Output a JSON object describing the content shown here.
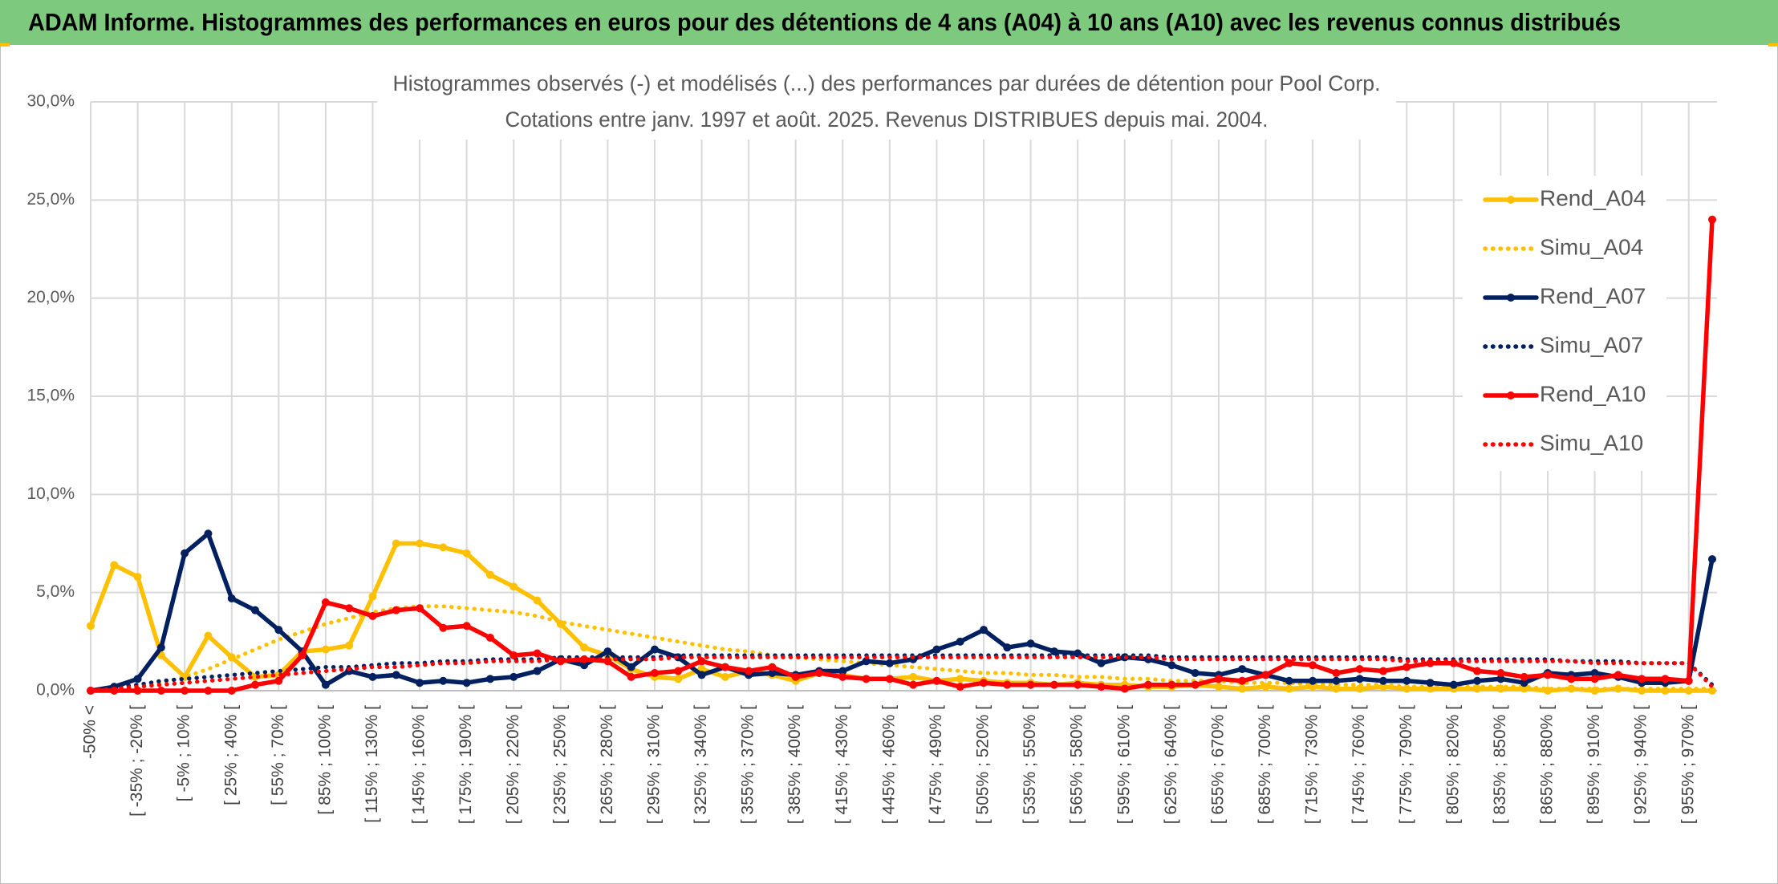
{
  "header": {
    "title": "ADAM Informe. Histogrammes des performances en euros pour des détentions de 4 ans (A04) à 10 ans (A10) avec les revenus connus distribués"
  },
  "chart_data": {
    "type": "line",
    "title": "Histogrammes observés (-) et modélisés (...) des performances par durées de détention pour Pool Corp.",
    "subtitle": "Cotations entre janv. 1997 et août. 2025. Revenus DISTRIBUES depuis mai. 2004.",
    "categories": [
      "-50% <",
      null,
      "[ -35% ; -20% [",
      null,
      "[ -5% ; 10% [",
      null,
      "[ 25% ; 40% [",
      null,
      "[ 55% ; 70% [",
      null,
      "[ 85% ; 100% [",
      null,
      "[ 115% ; 130% [",
      null,
      "[ 145% ; 160% [",
      null,
      "[ 175% ; 190% [",
      null,
      "[ 205% ; 220% [",
      null,
      "[ 235% ; 250% [",
      null,
      "[ 265% ; 280% [",
      null,
      "[ 295% ; 310% [",
      null,
      "[ 325% ; 340% [",
      null,
      "[ 355% ; 370% [",
      null,
      "[ 385% ; 400% [",
      null,
      "[ 415% ; 430% [",
      null,
      "[ 445% ; 460% [",
      null,
      "[ 475% ; 490% [",
      null,
      "[ 505% ; 520% [",
      null,
      "[ 535% ; 550% [",
      null,
      "[ 565% ; 580% [",
      null,
      "[ 595% ; 610% [",
      null,
      "[ 625% ; 640% [",
      null,
      "[ 655% ; 670% [",
      null,
      "[ 685% ; 700% [",
      null,
      "[ 715% ; 730% [",
      null,
      "[ 745% ; 760% [",
      null,
      "[ 775% ; 790% [",
      null,
      "[ 805% ; 820% [",
      null,
      "[ 835% ; 850% [",
      null,
      "[ 865% ; 880% [",
      null,
      "[ 895% ; 910% [",
      null,
      "[ 925% ; 940% [",
      null,
      "[ 955% ; 970% [",
      null
    ],
    "series": [
      {
        "name": "Rend_A04",
        "color": "#FFC000",
        "style": "solid",
        "markers": true,
        "values": [
          3.3,
          6.4,
          5.8,
          1.8,
          0.7,
          2.8,
          1.7,
          0.7,
          0.8,
          2.0,
          2.1,
          2.3,
          4.8,
          7.5,
          7.5,
          7.3,
          7.0,
          5.9,
          5.3,
          4.6,
          3.4,
          2.2,
          1.8,
          1.1,
          0.7,
          0.6,
          1.1,
          0.7,
          1.0,
          0.8,
          0.5,
          0.9,
          0.8,
          0.6,
          0.6,
          0.7,
          0.5,
          0.6,
          0.5,
          0.4,
          0.4,
          0.3,
          0.4,
          0.3,
          0.3,
          0.2,
          0.2,
          0.3,
          0.2,
          0.1,
          0.2,
          0.1,
          0.2,
          0.1,
          0.1,
          0.2,
          0.1,
          0.1,
          0.1,
          0.1,
          0.1,
          0.1,
          0.0,
          0.1,
          0.0,
          0.1,
          0.0,
          0.0,
          0.0,
          0.0
        ]
      },
      {
        "name": "Simu_A04",
        "color": "#FFC000",
        "style": "dotted",
        "markers": false,
        "values": [
          0.0,
          0.1,
          0.2,
          0.4,
          0.7,
          1.1,
          1.6,
          2.1,
          2.6,
          3.0,
          3.4,
          3.7,
          4.0,
          4.2,
          4.3,
          4.3,
          4.2,
          4.1,
          4.0,
          3.8,
          3.5,
          3.3,
          3.1,
          2.9,
          2.7,
          2.5,
          2.3,
          2.1,
          2.0,
          1.8,
          1.7,
          1.6,
          1.5,
          1.4,
          1.3,
          1.2,
          1.1,
          1.0,
          0.9,
          0.9,
          0.8,
          0.8,
          0.7,
          0.7,
          0.6,
          0.6,
          0.5,
          0.5,
          0.5,
          0.4,
          0.4,
          0.4,
          0.3,
          0.3,
          0.3,
          0.3,
          0.2,
          0.2,
          0.2,
          0.2,
          0.2,
          0.2,
          0.1,
          0.1,
          0.1,
          0.1,
          0.1,
          0.1,
          0.1,
          0.1
        ]
      },
      {
        "name": "Rend_A07",
        "color": "#002060",
        "style": "solid",
        "markers": true,
        "values": [
          0.0,
          0.2,
          0.6,
          2.2,
          7.0,
          8.0,
          4.7,
          4.1,
          3.1,
          2.0,
          0.3,
          1.0,
          0.7,
          0.8,
          0.4,
          0.5,
          0.4,
          0.6,
          0.7,
          1.0,
          1.6,
          1.3,
          2.0,
          1.2,
          2.1,
          1.7,
          0.8,
          1.2,
          0.8,
          0.9,
          0.8,
          1.0,
          1.0,
          1.5,
          1.4,
          1.6,
          2.1,
          2.5,
          3.1,
          2.2,
          2.4,
          2.0,
          1.9,
          1.4,
          1.7,
          1.6,
          1.3,
          0.9,
          0.8,
          1.1,
          0.8,
          0.5,
          0.5,
          0.5,
          0.6,
          0.5,
          0.5,
          0.4,
          0.3,
          0.5,
          0.6,
          0.4,
          0.9,
          0.8,
          0.9,
          0.7,
          0.4,
          0.4,
          0.5,
          6.7
        ]
      },
      {
        "name": "Simu_A07",
        "color": "#002060",
        "style": "dotted",
        "markers": false,
        "values": [
          0.0,
          0.2,
          0.3,
          0.5,
          0.6,
          0.7,
          0.8,
          0.9,
          1.0,
          1.1,
          1.2,
          1.2,
          1.3,
          1.4,
          1.4,
          1.5,
          1.5,
          1.6,
          1.6,
          1.6,
          1.7,
          1.7,
          1.7,
          1.7,
          1.7,
          1.8,
          1.8,
          1.8,
          1.8,
          1.8,
          1.8,
          1.8,
          1.8,
          1.8,
          1.8,
          1.8,
          1.8,
          1.8,
          1.8,
          1.8,
          1.8,
          1.8,
          1.8,
          1.8,
          1.8,
          1.8,
          1.7,
          1.7,
          1.7,
          1.7,
          1.7,
          1.7,
          1.7,
          1.7,
          1.7,
          1.7,
          1.6,
          1.6,
          1.6,
          1.6,
          1.6,
          1.6,
          1.6,
          1.5,
          1.5,
          1.5,
          1.4,
          1.4,
          1.4,
          0.3
        ]
      },
      {
        "name": "Rend_A10",
        "color": "#FF0000",
        "style": "solid",
        "markers": true,
        "values": [
          0.0,
          0.0,
          0.0,
          0.0,
          0.0,
          0.0,
          0.0,
          0.3,
          0.5,
          1.8,
          4.5,
          4.2,
          3.8,
          4.1,
          4.2,
          3.2,
          3.3,
          2.7,
          1.8,
          1.9,
          1.5,
          1.6,
          1.5,
          0.7,
          0.9,
          1.0,
          1.5,
          1.2,
          1.0,
          1.2,
          0.7,
          0.9,
          0.7,
          0.6,
          0.6,
          0.3,
          0.5,
          0.2,
          0.4,
          0.3,
          0.3,
          0.3,
          0.3,
          0.2,
          0.1,
          0.3,
          0.3,
          0.3,
          0.6,
          0.5,
          0.8,
          1.4,
          1.3,
          0.9,
          1.1,
          1.0,
          1.2,
          1.4,
          1.4,
          1.0,
          0.9,
          0.7,
          0.8,
          0.6,
          0.6,
          0.8,
          0.6,
          0.6,
          0.5,
          24.0
        ]
      },
      {
        "name": "Simu_A10",
        "color": "#FF0000",
        "style": "dotted",
        "markers": false,
        "values": [
          0.0,
          0.1,
          0.2,
          0.3,
          0.4,
          0.5,
          0.6,
          0.7,
          0.8,
          0.9,
          1.0,
          1.1,
          1.2,
          1.2,
          1.3,
          1.4,
          1.4,
          1.5,
          1.5,
          1.5,
          1.6,
          1.6,
          1.6,
          1.6,
          1.6,
          1.7,
          1.7,
          1.7,
          1.7,
          1.7,
          1.7,
          1.7,
          1.7,
          1.7,
          1.7,
          1.7,
          1.7,
          1.7,
          1.7,
          1.7,
          1.7,
          1.7,
          1.7,
          1.7,
          1.7,
          1.7,
          1.6,
          1.6,
          1.6,
          1.6,
          1.6,
          1.6,
          1.6,
          1.6,
          1.6,
          1.6,
          1.5,
          1.5,
          1.5,
          1.5,
          1.5,
          1.5,
          1.5,
          1.5,
          1.4,
          1.4,
          1.4,
          1.4,
          1.4,
          0.2
        ]
      }
    ],
    "ylim": [
      0,
      30
    ],
    "yticks": [
      {
        "value": 0,
        "label": "0,0%"
      },
      {
        "value": 5,
        "label": "5,0%"
      },
      {
        "value": 10,
        "label": "10,0%"
      },
      {
        "value": 15,
        "label": "15,0%"
      },
      {
        "value": 20,
        "label": "20,0%"
      },
      {
        "value": 25,
        "label": "25,0%"
      },
      {
        "value": 30,
        "label": "30,0%"
      }
    ],
    "grid": true,
    "legend": "right"
  }
}
